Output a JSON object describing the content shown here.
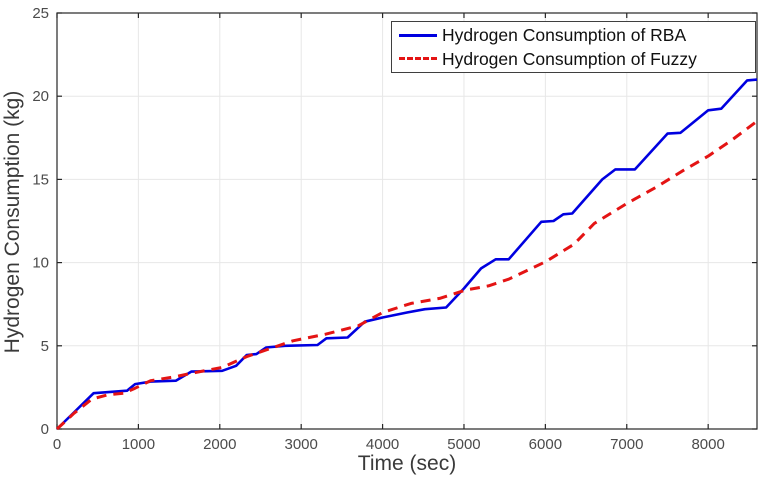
{
  "figure": {
    "xlabel": "Time (sec)",
    "ylabel": "Hydrogen Consumption (kg)"
  },
  "chart_data": {
    "type": "line",
    "title": "",
    "xlabel": "Time (sec)",
    "ylabel": "Hydrogen Consumption (kg)",
    "xlim": [
      0,
      8600
    ],
    "ylim": [
      0,
      25
    ],
    "x_ticks": [
      0,
      1000,
      2000,
      3000,
      4000,
      5000,
      6000,
      7000,
      8000
    ],
    "y_ticks": [
      0,
      5,
      10,
      15,
      20,
      25
    ],
    "grid": true,
    "legend_position": "top-right",
    "style": {
      "grid_color": "#e7e7e7",
      "axis_color": "#262626",
      "tick_label_color": "#4b4b4b",
      "background": "#ffffff"
    },
    "series": [
      {
        "name": "Hydrogen Consumption of RBA",
        "color": "#0000e0",
        "line_style": "solid",
        "line_width": 2.6,
        "points": [
          [
            0,
            0
          ],
          [
            220,
            1.05
          ],
          [
            450,
            2.15
          ],
          [
            860,
            2.3
          ],
          [
            960,
            2.7
          ],
          [
            1150,
            2.85
          ],
          [
            1460,
            2.9
          ],
          [
            1650,
            3.45
          ],
          [
            2030,
            3.5
          ],
          [
            2200,
            3.8
          ],
          [
            2330,
            4.45
          ],
          [
            2450,
            4.5
          ],
          [
            2570,
            4.9
          ],
          [
            2800,
            5.0
          ],
          [
            3200,
            5.05
          ],
          [
            3310,
            5.45
          ],
          [
            3570,
            5.5
          ],
          [
            3780,
            6.45
          ],
          [
            4000,
            6.7
          ],
          [
            4300,
            7.0
          ],
          [
            4520,
            7.2
          ],
          [
            4780,
            7.3
          ],
          [
            5000,
            8.45
          ],
          [
            5210,
            9.65
          ],
          [
            5390,
            10.2
          ],
          [
            5550,
            10.2
          ],
          [
            5950,
            12.45
          ],
          [
            6100,
            12.5
          ],
          [
            6220,
            12.9
          ],
          [
            6330,
            12.95
          ],
          [
            6700,
            15.0
          ],
          [
            6860,
            15.6
          ],
          [
            7100,
            15.6
          ],
          [
            7500,
            17.75
          ],
          [
            7660,
            17.8
          ],
          [
            8000,
            19.15
          ],
          [
            8160,
            19.25
          ],
          [
            8480,
            20.95
          ],
          [
            8600,
            21.0
          ]
        ]
      },
      {
        "name": "Hydrogen Consumption of Fuzzy",
        "color": "#e41414",
        "line_style": "dashed",
        "line_width": 3,
        "points": [
          [
            0,
            0
          ],
          [
            210,
            0.95
          ],
          [
            430,
            1.8
          ],
          [
            620,
            2.05
          ],
          [
            820,
            2.15
          ],
          [
            960,
            2.45
          ],
          [
            1150,
            2.9
          ],
          [
            1460,
            3.15
          ],
          [
            1650,
            3.35
          ],
          [
            2030,
            3.7
          ],
          [
            2330,
            4.35
          ],
          [
            2600,
            4.8
          ],
          [
            2900,
            5.3
          ],
          [
            3300,
            5.7
          ],
          [
            3700,
            6.2
          ],
          [
            4000,
            7.0
          ],
          [
            4350,
            7.55
          ],
          [
            4700,
            7.85
          ],
          [
            5020,
            8.35
          ],
          [
            5300,
            8.6
          ],
          [
            5550,
            9.0
          ],
          [
            6000,
            10.05
          ],
          [
            6350,
            11.1
          ],
          [
            6600,
            12.35
          ],
          [
            7000,
            13.55
          ],
          [
            7350,
            14.5
          ],
          [
            7700,
            15.55
          ],
          [
            8000,
            16.4
          ],
          [
            8300,
            17.4
          ],
          [
            8600,
            18.5
          ]
        ]
      }
    ]
  }
}
